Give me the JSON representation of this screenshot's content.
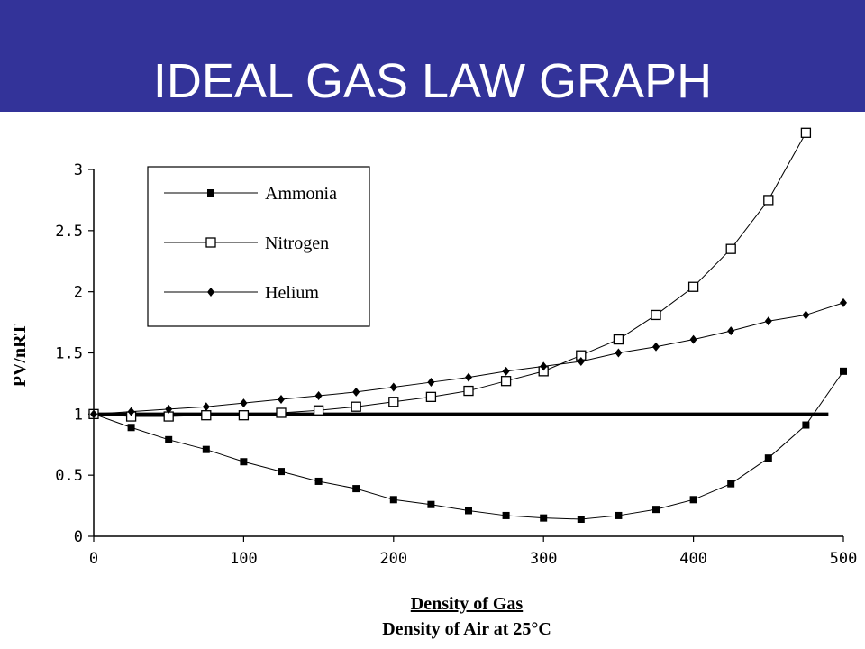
{
  "slide": {
    "title": "IDEAL GAS LAW GRAPH"
  },
  "colors": {
    "title_bar": "#333399",
    "title_text": "#ffffff",
    "ink": "#000000"
  },
  "chart_data": {
    "type": "line",
    "title": "",
    "xlabel_line1": "Density of Gas",
    "xlabel_line2": "Density of Air at 25°C",
    "ylabel": "PV/nRT",
    "xlim": [
      0,
      500
    ],
    "ylim": [
      0,
      3
    ],
    "x_ticks": [
      "0",
      "100",
      "200",
      "300",
      "400",
      "500"
    ],
    "y_ticks": [
      "0",
      "0.5",
      "1",
      "1.5",
      "2",
      "2.5",
      "3"
    ],
    "legend_position": "top-left",
    "reference_line": {
      "y": 1,
      "x_from": 0,
      "x_to": 490
    },
    "x": [
      0,
      25,
      50,
      75,
      100,
      125,
      150,
      175,
      200,
      225,
      250,
      275,
      300,
      325,
      350,
      375,
      400,
      425,
      450,
      475,
      500
    ],
    "series": [
      {
        "name": "Ammonia",
        "marker": "filled-square",
        "x": [
          0,
          25,
          50,
          75,
          100,
          125,
          150,
          175,
          200,
          225,
          250,
          275,
          300,
          325,
          350,
          375,
          400,
          425,
          450,
          475,
          500
        ],
        "values": [
          1.0,
          0.89,
          0.79,
          0.71,
          0.61,
          0.53,
          0.45,
          0.39,
          0.3,
          0.26,
          0.21,
          0.17,
          0.15,
          0.14,
          0.17,
          0.22,
          0.3,
          0.43,
          0.64,
          0.91,
          1.35
        ]
      },
      {
        "name": "Nitrogen",
        "marker": "open-square",
        "x": [
          0,
          25,
          50,
          75,
          100,
          125,
          150,
          175,
          200,
          225,
          250,
          275,
          300,
          325,
          350,
          375,
          400,
          425,
          450,
          475
        ],
        "values": [
          1.0,
          0.98,
          0.98,
          0.99,
          0.99,
          1.01,
          1.03,
          1.06,
          1.1,
          1.14,
          1.19,
          1.27,
          1.35,
          1.48,
          1.61,
          1.81,
          2.04,
          2.35,
          2.75,
          3.3
        ]
      },
      {
        "name": "Helium",
        "marker": "filled-diamond",
        "x": [
          0,
          25,
          50,
          75,
          100,
          125,
          150,
          175,
          200,
          225,
          250,
          275,
          300,
          325,
          350,
          375,
          400,
          425,
          450,
          475,
          500
        ],
        "values": [
          1.0,
          1.02,
          1.04,
          1.06,
          1.09,
          1.12,
          1.15,
          1.18,
          1.22,
          1.26,
          1.3,
          1.35,
          1.39,
          1.43,
          1.5,
          1.55,
          1.61,
          1.68,
          1.76,
          1.81,
          1.91
        ]
      }
    ]
  }
}
